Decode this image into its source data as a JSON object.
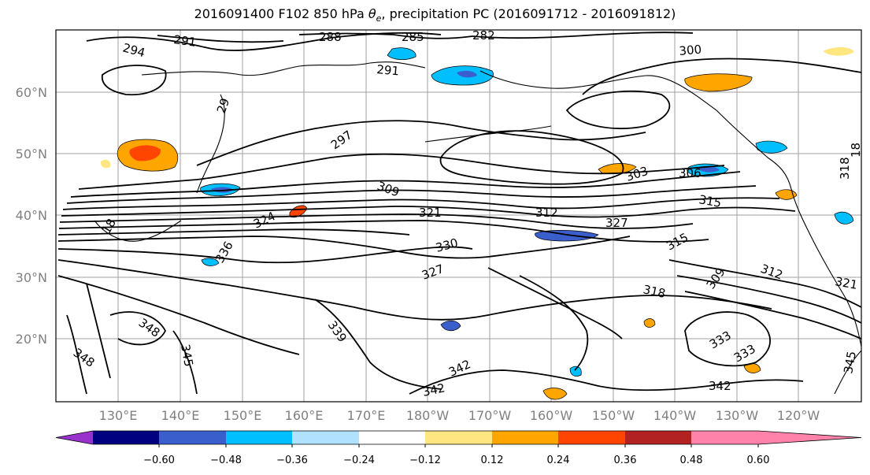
{
  "title": {
    "prefix": "2016091400 F102 850 hPa ",
    "theta_symbol": "θ",
    "theta_subscript": "e",
    "suffix": ", precipitation PC (2016091712 - 2016091812)"
  },
  "colors": {
    "land": "#000000",
    "grid": "#a0a0a0",
    "contour": "#000000",
    "background": "#ffffff"
  },
  "map": {
    "lat_ticks": [
      "60°N",
      "50°N",
      "40°N",
      "30°N",
      "20°N"
    ],
    "lon_ticks": [
      "130°E",
      "140°E",
      "150°E",
      "160°E",
      "170°E",
      "180°W",
      "170°W",
      "160°W",
      "150°W",
      "140°W",
      "130°W",
      "120°W"
    ]
  },
  "contour_labels": [
    "294",
    "291",
    "288",
    "285",
    "282",
    "300",
    "291",
    "29",
    "297",
    "309",
    "321",
    "312",
    "303",
    "306",
    "315",
    "318",
    "327",
    "330",
    "327",
    "324",
    "315",
    "312",
    "309",
    "318",
    "321",
    "336",
    "339",
    "348",
    "345",
    "348",
    "342",
    "342",
    "333",
    "333",
    "342",
    "345",
    "18",
    "18"
  ],
  "colorbar": {
    "ticks": [
      "−0.60",
      "−0.48",
      "−0.36",
      "−0.24",
      "−0.12",
      "0.12",
      "0.24",
      "0.36",
      "0.48",
      "0.60"
    ],
    "colors": [
      "#9932cc",
      "#000080",
      "#3a5fcd",
      "#00bfff",
      "#b0e2ff",
      "#ffffff",
      "#ffe680",
      "#ffa500",
      "#ff4500",
      "#b22222",
      "#ff82ab"
    ]
  }
}
